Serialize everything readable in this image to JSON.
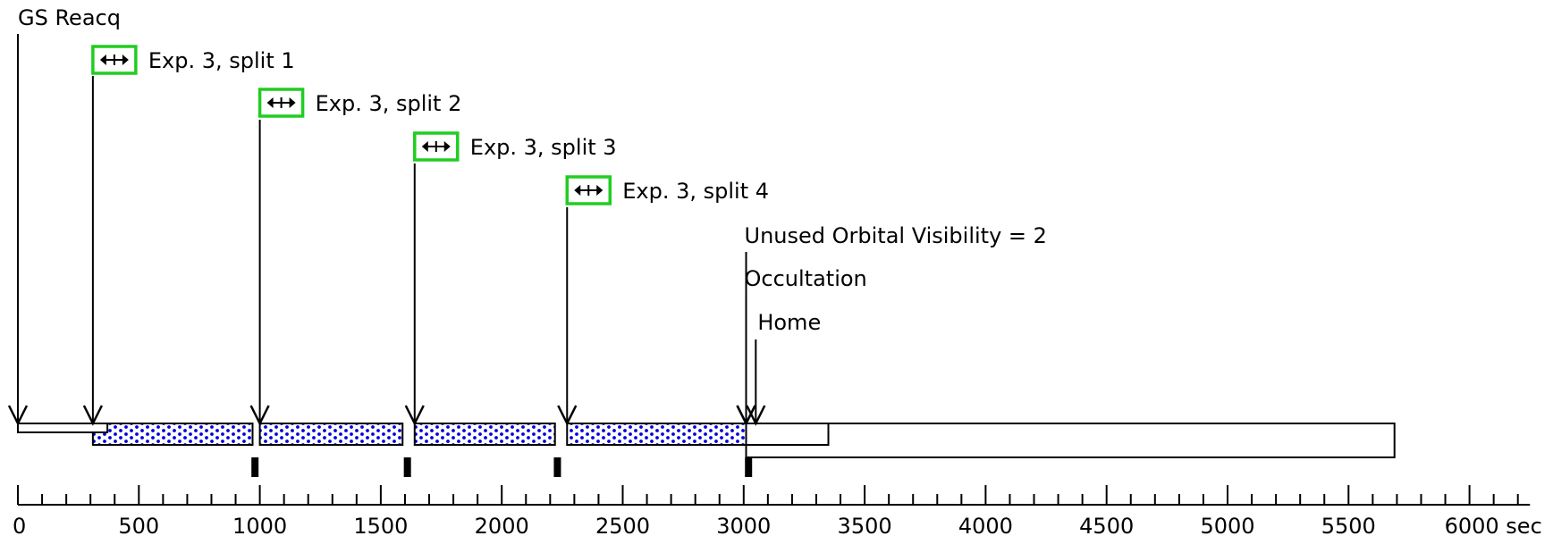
{
  "axis": {
    "min": 0,
    "max": 6250,
    "major_step": 500,
    "minor_step": 100,
    "tick_labels": [
      "0",
      "500",
      "1000",
      "1500",
      "2000",
      "2500",
      "3000",
      "3500",
      "4000",
      "4500",
      "5000",
      "5500",
      "6000 sec"
    ]
  },
  "events": [
    {
      "label": "GS Reacq",
      "time": 0,
      "icon": false
    },
    {
      "label": "Exp. 3, split 1",
      "time": 310,
      "icon": true,
      "icon_name": "exposure-split-icon"
    },
    {
      "label": "Exp. 3, split 2",
      "time": 1000,
      "icon": true,
      "icon_name": "exposure-split-icon"
    },
    {
      "label": "Exp. 3, split 3",
      "time": 1640,
      "icon": true,
      "icon_name": "exposure-split-icon"
    },
    {
      "label": "Exp. 3, split 4",
      "time": 2270,
      "icon": true,
      "icon_name": "exposure-split-icon"
    },
    {
      "label": "Unused Orbital Visibility = 2",
      "time": 3010,
      "icon": false
    },
    {
      "label": "Occultation",
      "time": 3010,
      "icon": false
    },
    {
      "label": "Home",
      "time": 3050,
      "icon": false
    }
  ],
  "bars": {
    "guide_star": {
      "start": 0,
      "end": 370
    },
    "exposures": [
      {
        "start": 310,
        "end": 970
      },
      {
        "start": 1000,
        "end": 1590
      },
      {
        "start": 1640,
        "end": 2220
      },
      {
        "start": 2270,
        "end": 3010
      }
    ],
    "home_slew": {
      "start": 3010,
      "end": 3350
    },
    "occultation": {
      "start": 3010,
      "end": 5690
    }
  },
  "markers": [
    980,
    1610,
    2230,
    3020
  ],
  "colors": {
    "exposure_fill": "#0000dd",
    "icon_border": "#22cc22",
    "line": "#000000"
  }
}
